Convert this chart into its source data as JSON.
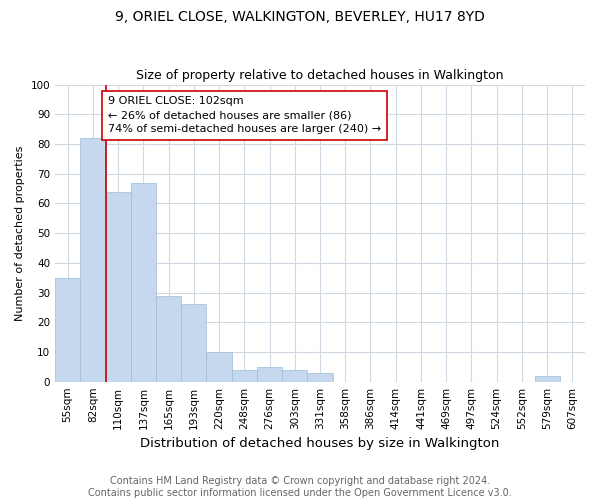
{
  "title": "9, ORIEL CLOSE, WALKINGTON, BEVERLEY, HU17 8YD",
  "subtitle": "Size of property relative to detached houses in Walkington",
  "xlabel": "Distribution of detached houses by size in Walkington",
  "ylabel": "Number of detached properties",
  "footer_line1": "Contains HM Land Registry data © Crown copyright and database right 2024.",
  "footer_line2": "Contains public sector information licensed under the Open Government Licence v3.0.",
  "bin_labels": [
    "55sqm",
    "82sqm",
    "110sqm",
    "137sqm",
    "165sqm",
    "193sqm",
    "220sqm",
    "248sqm",
    "276sqm",
    "303sqm",
    "331sqm",
    "358sqm",
    "386sqm",
    "414sqm",
    "441sqm",
    "469sqm",
    "497sqm",
    "524sqm",
    "552sqm",
    "579sqm",
    "607sqm"
  ],
  "bar_heights": [
    35,
    82,
    64,
    67,
    29,
    26,
    10,
    4,
    5,
    4,
    3,
    0,
    0,
    0,
    0,
    0,
    0,
    0,
    0,
    2,
    0
  ],
  "bar_color": "#c5d8ee",
  "bar_edge_color": "#a0bcd8",
  "ylim": [
    0,
    100
  ],
  "yticks": [
    0,
    10,
    20,
    30,
    40,
    50,
    60,
    70,
    80,
    90,
    100
  ],
  "vline_color": "#cc0000",
  "annotation_text": "9 ORIEL CLOSE: 102sqm\n← 26% of detached houses are smaller (86)\n74% of semi-detached houses are larger (240) →",
  "annotation_box_color": "#ffffff",
  "annotation_box_edge": "#cc0000",
  "fig_bg_color": "#ffffff",
  "plot_bg_color": "#ffffff",
  "grid_color": "#d0d8e4",
  "title_fontsize": 10,
  "subtitle_fontsize": 9,
  "xlabel_fontsize": 9.5,
  "ylabel_fontsize": 8,
  "tick_fontsize": 7.5,
  "annotation_fontsize": 8,
  "footer_fontsize": 7
}
